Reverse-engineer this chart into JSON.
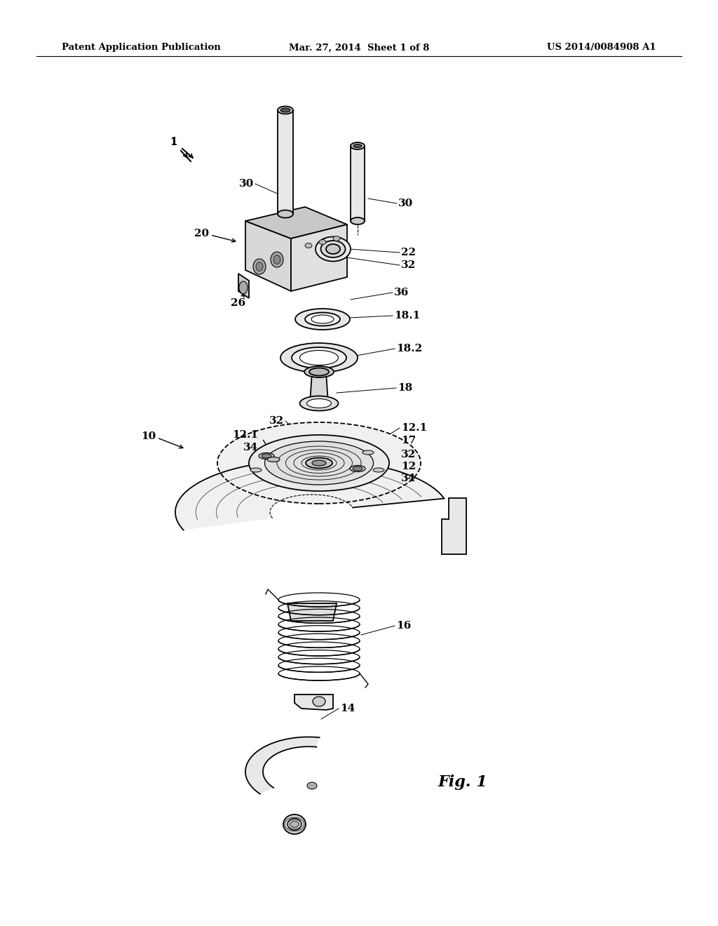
{
  "background_color": "#ffffff",
  "header_left": "Patent Application Publication",
  "header_center": "Mar. 27, 2014  Sheet 1 of 8",
  "header_right": "US 2014/0084908 A1",
  "fig_label": "Fig. 1",
  "title_fontsize": 9.5,
  "label_fontsize": 11,
  "fig1_fontsize": 16
}
